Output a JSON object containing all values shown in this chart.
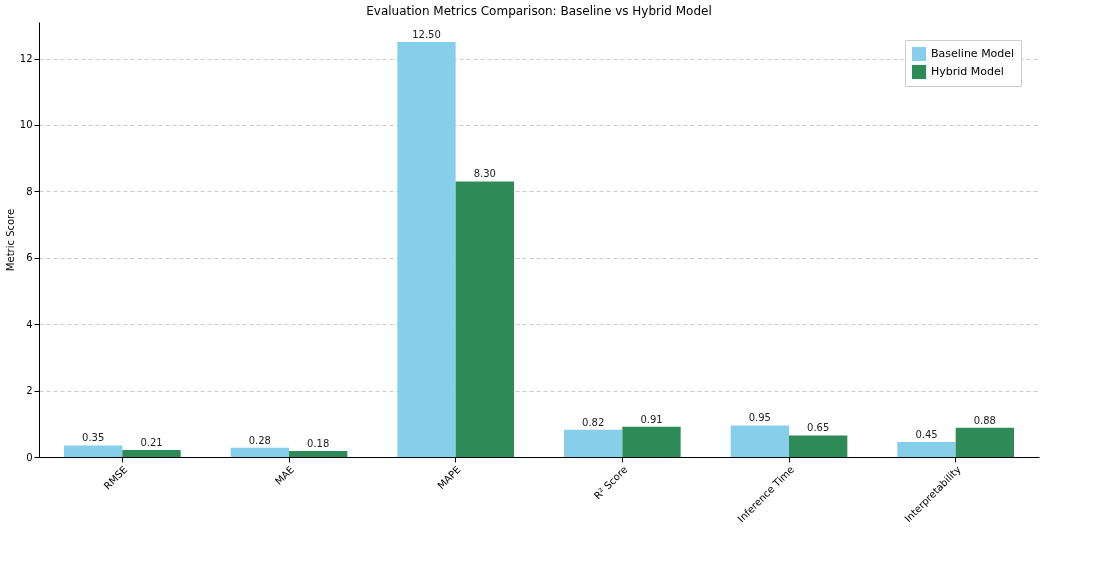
{
  "chart_data": {
    "type": "bar",
    "title": "Evaluation Metrics Comparison: Baseline vs Hybrid Model",
    "ylabel": "Metric Score",
    "categories": [
      "RMSE",
      "MAE",
      "MAPE",
      "R² Score",
      "Inference Time",
      "Interpretability"
    ],
    "series": [
      {
        "name": "Baseline Model",
        "color": "#87ceeb",
        "values": [
          0.35,
          0.28,
          12.5,
          0.82,
          0.95,
          0.45
        ],
        "value_labels": [
          "0.35",
          "0.28",
          "12.50",
          "0.82",
          "0.95",
          "0.45"
        ]
      },
      {
        "name": "Hybrid Model",
        "color": "#2e8b57",
        "values": [
          0.21,
          0.18,
          8.3,
          0.91,
          0.65,
          0.88
        ],
        "value_labels": [
          "0.21",
          "0.18",
          "8.30",
          "0.91",
          "0.65",
          "0.88"
        ]
      }
    ],
    "ylim": [
      0,
      13.1
    ],
    "yticks": [
      0,
      2,
      4,
      6,
      8,
      10,
      12
    ],
    "grid": "y",
    "legend": "top right"
  }
}
